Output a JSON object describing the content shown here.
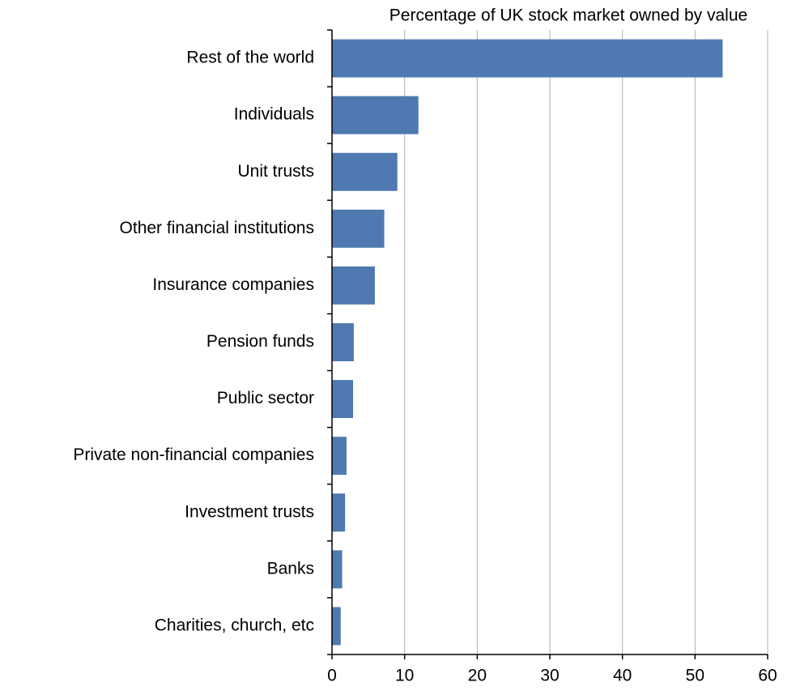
{
  "chart_data": {
    "type": "hbar",
    "title": "Percentage of UK stock market owned by value",
    "categories": [
      "Rest of the world",
      "Individuals",
      "Unit trusts",
      "Other financial institutions",
      "Insurance companies",
      "Pension funds",
      "Public sector",
      "Private non-financial companies",
      "Investment trusts",
      "Banks",
      "Charities, church, etc"
    ],
    "values": [
      53.8,
      11.9,
      9.0,
      7.2,
      5.9,
      3.0,
      2.9,
      2.0,
      1.8,
      1.4,
      1.2
    ],
    "color": "#4f79b0",
    "xlim": [
      0,
      60
    ],
    "xticks": [
      0,
      10,
      20,
      30,
      40,
      50,
      60
    ],
    "grid": true
  }
}
